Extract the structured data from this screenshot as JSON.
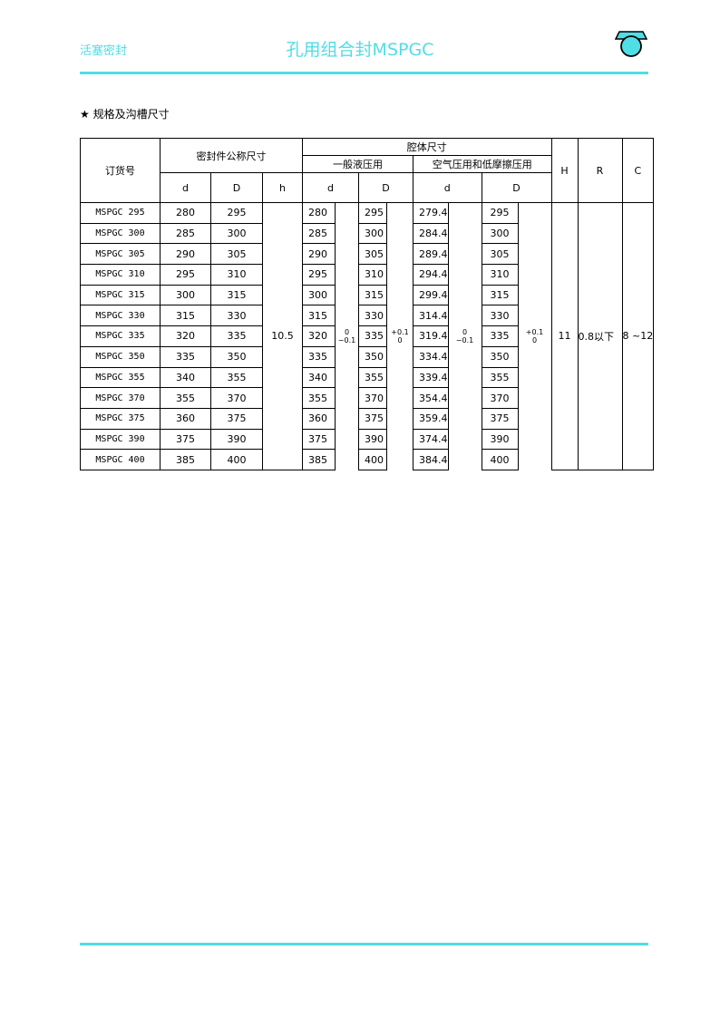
{
  "header": {
    "left": "活塞密封",
    "title": "孔用组合封MSPGC",
    "accent": "#4fdde6",
    "logo_icon": "seal-profile-icon"
  },
  "section_title": "★ 规格及沟槽尺寸",
  "table": {
    "h_order": "订货号",
    "h_seal": "密封件公称尺寸",
    "h_cavity": "腔体尺寸",
    "h_hyd": "一般液压用",
    "h_air": "空气压用和低摩擦压用",
    "h_d": "d",
    "h_D": "D",
    "h_h": "h",
    "h_H": "H",
    "h_R": "R",
    "h_C": "C",
    "h_value": "10.5",
    "H_value": "11",
    "R_value": "0.8以下",
    "C_value": "8 ~12",
    "tol_d_upper": "0",
    "tol_d_lower": "−0.1",
    "tol_D_upper": "+0.1",
    "tol_D_lower": "0",
    "rows": [
      {
        "order": "MSPGC 295",
        "d": "280",
        "D": "295",
        "cd": "280",
        "cD": "295",
        "ad": "279.4",
        "aD": "295"
      },
      {
        "order": "MSPGC 300",
        "d": "285",
        "D": "300",
        "cd": "285",
        "cD": "300",
        "ad": "284.4",
        "aD": "300"
      },
      {
        "order": "MSPGC 305",
        "d": "290",
        "D": "305",
        "cd": "290",
        "cD": "305",
        "ad": "289.4",
        "aD": "305"
      },
      {
        "order": "MSPGC 310",
        "d": "295",
        "D": "310",
        "cd": "295",
        "cD": "310",
        "ad": "294.4",
        "aD": "310"
      },
      {
        "order": "MSPGC 315",
        "d": "300",
        "D": "315",
        "cd": "300",
        "cD": "315",
        "ad": "299.4",
        "aD": "315"
      },
      {
        "order": "MSPGC 330",
        "d": "315",
        "D": "330",
        "cd": "315",
        "cD": "330",
        "ad": "314.4",
        "aD": "330"
      },
      {
        "order": "MSPGC 335",
        "d": "320",
        "D": "335",
        "cd": "320",
        "cD": "335",
        "ad": "319.4",
        "aD": "335"
      },
      {
        "order": "MSPGC 350",
        "d": "335",
        "D": "350",
        "cd": "335",
        "cD": "350",
        "ad": "334.4",
        "aD": "350"
      },
      {
        "order": "MSPGC 355",
        "d": "340",
        "D": "355",
        "cd": "340",
        "cD": "355",
        "ad": "339.4",
        "aD": "355"
      },
      {
        "order": "MSPGC 370",
        "d": "355",
        "D": "370",
        "cd": "355",
        "cD": "370",
        "ad": "354.4",
        "aD": "370"
      },
      {
        "order": "MSPGC 375",
        "d": "360",
        "D": "375",
        "cd": "360",
        "cD": "375",
        "ad": "359.4",
        "aD": "375"
      },
      {
        "order": "MSPGC 390",
        "d": "375",
        "D": "390",
        "cd": "375",
        "cD": "390",
        "ad": "374.4",
        "aD": "390"
      },
      {
        "order": "MSPGC 400",
        "d": "385",
        "D": "400",
        "cd": "385",
        "cD": "400",
        "ad": "384.4",
        "aD": "400"
      }
    ]
  }
}
